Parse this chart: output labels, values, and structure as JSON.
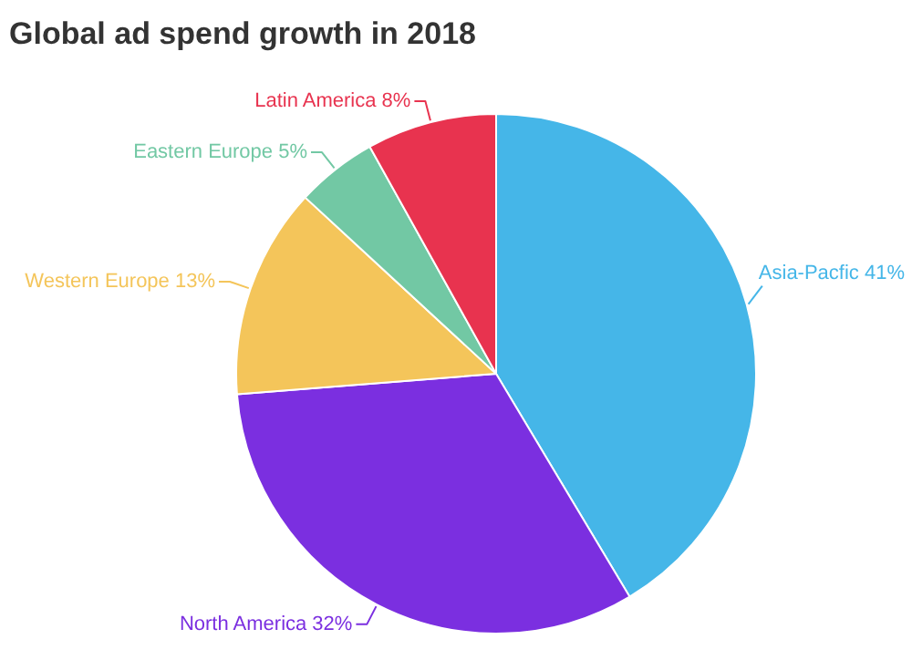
{
  "chart_data": {
    "type": "pie",
    "title": "Global ad spend growth in 2018",
    "categories": [
      "Asia-Pacfic",
      "North America",
      "Western Europe",
      "Eastern Europe",
      "Latin America"
    ],
    "values": [
      41,
      32,
      13,
      5,
      8
    ],
    "value_labels": [
      "41%",
      "32%",
      "13%",
      "5%",
      "8%"
    ],
    "colors": [
      "#45b6e8",
      "#7b2fe0",
      "#f4c55a",
      "#72c8a4",
      "#e8334f"
    ]
  }
}
